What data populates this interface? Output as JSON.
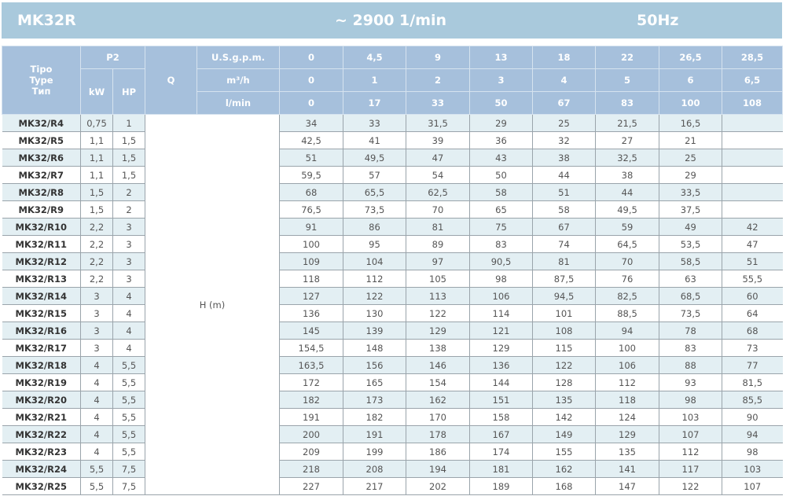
{
  "title": {
    "model": "MK32R",
    "speed": "~ 2900 1/min",
    "frequency": "50Hz"
  },
  "header": {
    "type_label": [
      "Tipo",
      "Type",
      "Тип"
    ],
    "p2": "P2",
    "kw": "kW",
    "hp": "HP",
    "q": "Q",
    "units": [
      "U.S.g.p.m.",
      "m³/h",
      "l/min"
    ],
    "flow": [
      [
        "0",
        "4,5",
        "9",
        "13",
        "18",
        "22",
        "26,5",
        "28,5"
      ],
      [
        "0",
        "1",
        "2",
        "3",
        "4",
        "5",
        "6",
        "6,5"
      ],
      [
        "0",
        "17",
        "33",
        "50",
        "67",
        "83",
        "100",
        "108"
      ]
    ],
    "head_label": "H (m)"
  },
  "rows": [
    {
      "type": "MK32/R4",
      "kw": "0,75",
      "hp": "1",
      "h": [
        "34",
        "33",
        "31,5",
        "29",
        "25",
        "21,5",
        "16,5",
        ""
      ]
    },
    {
      "type": "MK32/R5",
      "kw": "1,1",
      "hp": "1,5",
      "h": [
        "42,5",
        "41",
        "39",
        "36",
        "32",
        "27",
        "21",
        ""
      ]
    },
    {
      "type": "MK32/R6",
      "kw": "1,1",
      "hp": "1,5",
      "h": [
        "51",
        "49,5",
        "47",
        "43",
        "38",
        "32,5",
        "25",
        ""
      ]
    },
    {
      "type": "MK32/R7",
      "kw": "1,1",
      "hp": "1,5",
      "h": [
        "59,5",
        "57",
        "54",
        "50",
        "44",
        "38",
        "29",
        ""
      ]
    },
    {
      "type": "MK32/R8",
      "kw": "1,5",
      "hp": "2",
      "h": [
        "68",
        "65,5",
        "62,5",
        "58",
        "51",
        "44",
        "33,5",
        ""
      ]
    },
    {
      "type": "MK32/R9",
      "kw": "1,5",
      "hp": "2",
      "h": [
        "76,5",
        "73,5",
        "70",
        "65",
        "58",
        "49,5",
        "37,5",
        ""
      ]
    },
    {
      "type": "MK32/R10",
      "kw": "2,2",
      "hp": "3",
      "h": [
        "91",
        "86",
        "81",
        "75",
        "67",
        "59",
        "49",
        "42"
      ]
    },
    {
      "type": "MK32/R11",
      "kw": "2,2",
      "hp": "3",
      "h": [
        "100",
        "95",
        "89",
        "83",
        "74",
        "64,5",
        "53,5",
        "47"
      ]
    },
    {
      "type": "MK32/R12",
      "kw": "2,2",
      "hp": "3",
      "h": [
        "109",
        "104",
        "97",
        "90,5",
        "81",
        "70",
        "58,5",
        "51"
      ]
    },
    {
      "type": "MK32/R13",
      "kw": "2,2",
      "hp": "3",
      "h": [
        "118",
        "112",
        "105",
        "98",
        "87,5",
        "76",
        "63",
        "55,5"
      ]
    },
    {
      "type": "MK32/R14",
      "kw": "3",
      "hp": "4",
      "h": [
        "127",
        "122",
        "113",
        "106",
        "94,5",
        "82,5",
        "68,5",
        "60"
      ]
    },
    {
      "type": "MK32/R15",
      "kw": "3",
      "hp": "4",
      "h": [
        "136",
        "130",
        "122",
        "114",
        "101",
        "88,5",
        "73,5",
        "64"
      ]
    },
    {
      "type": "MK32/R16",
      "kw": "3",
      "hp": "4",
      "h": [
        "145",
        "139",
        "129",
        "121",
        "108",
        "94",
        "78",
        "68"
      ]
    },
    {
      "type": "MK32/R17",
      "kw": "3",
      "hp": "4",
      "h": [
        "154,5",
        "148",
        "138",
        "129",
        "115",
        "100",
        "83",
        "73"
      ]
    },
    {
      "type": "MK32/R18",
      "kw": "4",
      "hp": "5,5",
      "h": [
        "163,5",
        "156",
        "146",
        "136",
        "122",
        "106",
        "88",
        "77"
      ]
    },
    {
      "type": "MK32/R19",
      "kw": "4",
      "hp": "5,5",
      "h": [
        "172",
        "165",
        "154",
        "144",
        "128",
        "112",
        "93",
        "81,5"
      ]
    },
    {
      "type": "MK32/R20",
      "kw": "4",
      "hp": "5,5",
      "h": [
        "182",
        "173",
        "162",
        "151",
        "135",
        "118",
        "98",
        "85,5"
      ]
    },
    {
      "type": "MK32/R21",
      "kw": "4",
      "hp": "5,5",
      "h": [
        "191",
        "182",
        "170",
        "158",
        "142",
        "124",
        "103",
        "90"
      ]
    },
    {
      "type": "MK32/R22",
      "kw": "4",
      "hp": "5,5",
      "h": [
        "200",
        "191",
        "178",
        "167",
        "149",
        "129",
        "107",
        "94"
      ]
    },
    {
      "type": "MK32/R23",
      "kw": "4",
      "hp": "5,5",
      "h": [
        "209",
        "199",
        "186",
        "174",
        "155",
        "135",
        "112",
        "98"
      ]
    },
    {
      "type": "MK32/R24",
      "kw": "5,5",
      "hp": "7,5",
      "h": [
        "218",
        "208",
        "194",
        "181",
        "162",
        "141",
        "117",
        "103"
      ]
    },
    {
      "type": "MK32/R25",
      "kw": "5,5",
      "hp": "7,5",
      "h": [
        "227",
        "217",
        "202",
        "189",
        "168",
        "147",
        "122",
        "107"
      ]
    }
  ],
  "colors": {
    "title_bar": "#a9c9dc",
    "header": "#a6c0dc",
    "stripe": "#e3eff3"
  }
}
